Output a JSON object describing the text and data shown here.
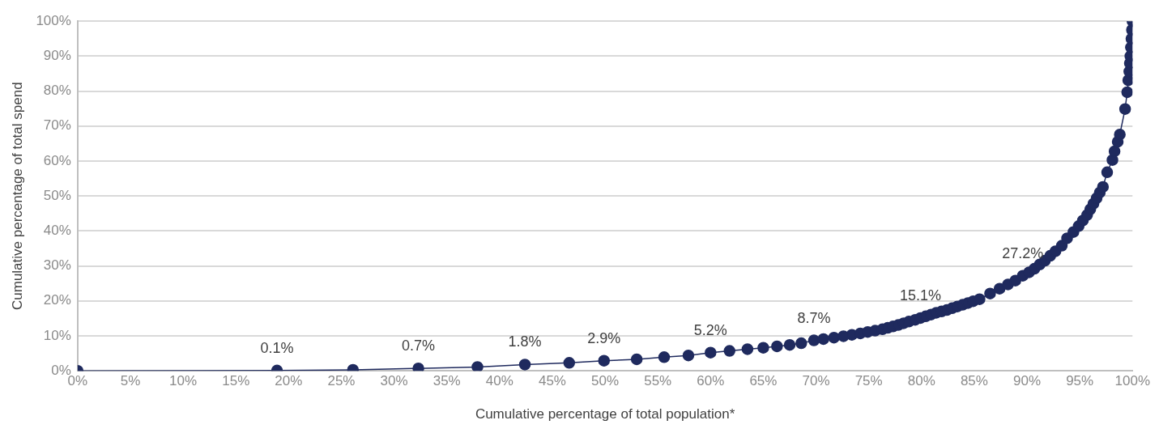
{
  "chart_data": {
    "type": "line",
    "xlabel": "Cumulative percentage of total population*",
    "ylabel": "Cumulative percentage of total spend",
    "x": [
      0,
      18.9,
      26.1,
      32.3,
      37.9,
      42.4,
      46.6,
      49.9,
      53.0,
      55.6,
      57.9,
      60.0,
      61.8,
      63.5,
      65.0,
      66.3,
      67.5,
      68.6,
      69.8,
      70.7,
      71.7,
      72.6,
      73.4,
      74.2,
      74.9,
      75.6,
      76.3,
      76.8,
      77.3,
      77.8,
      78.3,
      78.8,
      79.4,
      79.9,
      80.4,
      80.9,
      81.4,
      81.9,
      82.4,
      82.9,
      83.4,
      83.9,
      84.4,
      84.9,
      85.5,
      86.5,
      87.4,
      88.2,
      88.9,
      89.6,
      90.2,
      90.7,
      91.2,
      91.7,
      92.2,
      92.7,
      93.3,
      93.8,
      94.4,
      94.9,
      95.3,
      95.7,
      96.0,
      96.3,
      96.6,
      96.9,
      97.2,
      97.6,
      98.1,
      98.3,
      98.6,
      98.8,
      99.3,
      99.5,
      99.6,
      99.7,
      99.75,
      99.8,
      99.85,
      99.9,
      99.95,
      100
    ],
    "series": [
      {
        "color": "#1f2a5e",
        "values": [
          0,
          0.1,
          0.3,
          0.7,
          1.1,
          1.8,
          2.3,
          2.9,
          3.3,
          3.9,
          4.4,
          5.2,
          5.7,
          6.2,
          6.6,
          7.0,
          7.4,
          7.9,
          8.7,
          9.1,
          9.5,
          9.9,
          10.3,
          10.7,
          11.1,
          11.5,
          11.9,
          12.3,
          12.7,
          13.1,
          13.6,
          14.1,
          14.6,
          15.1,
          15.6,
          16.1,
          16.6,
          17.0,
          17.4,
          17.9,
          18.4,
          18.9,
          19.4,
          19.9,
          20.5,
          22.1,
          23.5,
          24.7,
          25.8,
          27.2,
          28.2,
          29.2,
          30.4,
          31.5,
          32.9,
          34.2,
          35.8,
          37.9,
          39.7,
          41.4,
          43.0,
          44.6,
          46.2,
          47.8,
          49.4,
          51.0,
          52.6,
          56.8,
          60.3,
          62.8,
          65.5,
          67.6,
          74.9,
          79.7,
          83.1,
          85.6,
          88,
          90,
          92.5,
          95,
          97.5,
          100
        ]
      }
    ],
    "xlim": [
      0,
      100
    ],
    "xticks": [
      {
        "value": 0,
        "label": "0%"
      },
      {
        "value": 5,
        "label": "5%"
      },
      {
        "value": 10,
        "label": "10%"
      },
      {
        "value": 15,
        "label": "15%"
      },
      {
        "value": 20,
        "label": "20%"
      },
      {
        "value": 25,
        "label": "25%"
      },
      {
        "value": 30,
        "label": "30%"
      },
      {
        "value": 35,
        "label": "35%"
      },
      {
        "value": 40,
        "label": "40%"
      },
      {
        "value": 45,
        "label": "45%"
      },
      {
        "value": 50,
        "label": "50%"
      },
      {
        "value": 55,
        "label": "55%"
      },
      {
        "value": 60,
        "label": "60%"
      },
      {
        "value": 65,
        "label": "65%"
      },
      {
        "value": 70,
        "label": "70%"
      },
      {
        "value": 75,
        "label": "75%"
      },
      {
        "value": 80,
        "label": "80%"
      },
      {
        "value": 85,
        "label": "85%"
      },
      {
        "value": 90,
        "label": "90%"
      },
      {
        "value": 95,
        "label": "95%"
      },
      {
        "value": 100,
        "label": "100%"
      }
    ],
    "ylim": [
      0,
      100
    ],
    "yticks": [
      {
        "value": 0,
        "label": "0%"
      },
      {
        "value": 10,
        "label": "10%"
      },
      {
        "value": 20,
        "label": "20%"
      },
      {
        "value": 30,
        "label": "30%"
      },
      {
        "value": 40,
        "label": "40%"
      },
      {
        "value": 50,
        "label": "50%"
      },
      {
        "value": 60,
        "label": "60%"
      },
      {
        "value": 70,
        "label": "70%"
      },
      {
        "value": 80,
        "label": "80%"
      },
      {
        "value": 90,
        "label": "90%"
      },
      {
        "value": 100,
        "label": "100%"
      }
    ],
    "annotations": [
      {
        "text": "0.1%",
        "x": 18.9,
        "y": 0.1
      },
      {
        "text": "0.7%",
        "x": 32.3,
        "y": 0.7
      },
      {
        "text": "1.8%",
        "x": 42.4,
        "y": 1.8
      },
      {
        "text": "2.9%",
        "x": 49.9,
        "y": 2.9
      },
      {
        "text": "5.2%",
        "x": 60.0,
        "y": 5.2
      },
      {
        "text": "8.7%",
        "x": 69.8,
        "y": 8.7
      },
      {
        "text": "15.1%",
        "x": 79.9,
        "y": 15.1
      },
      {
        "text": "27.2%",
        "x": 89.6,
        "y": 27.2
      }
    ],
    "grid": "y",
    "legend": false,
    "marker": "circle",
    "line_style": "solid"
  }
}
